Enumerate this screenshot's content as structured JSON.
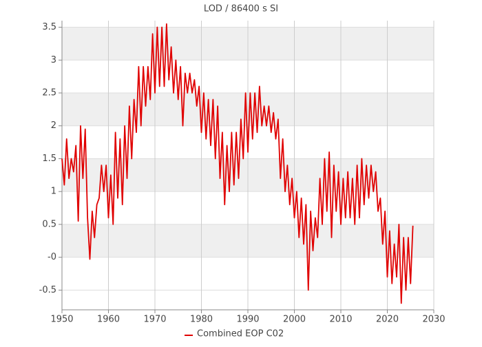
{
  "chart_data": {
    "type": "line",
    "title": "LOD / 86400 s SI",
    "x": [
      1950,
      1950.5,
      1951,
      1951.5,
      1952,
      1952.5,
      1953,
      1953.5,
      1954,
      1954.5,
      1955,
      1955.5,
      1956,
      1956.5,
      1957,
      1957.5,
      1958,
      1958.5,
      1959,
      1959.5,
      1960,
      1960.5,
      1961,
      1961.5,
      1962,
      1962.5,
      1963,
      1963.5,
      1964,
      1964.5,
      1965,
      1965.5,
      1966,
      1966.5,
      1967,
      1967.5,
      1968,
      1968.5,
      1969,
      1969.5,
      1970,
      1970.5,
      1971,
      1971.5,
      1972,
      1972.5,
      1973,
      1973.5,
      1974,
      1974.5,
      1975,
      1975.5,
      1976,
      1976.5,
      1977,
      1977.5,
      1978,
      1978.5,
      1979,
      1979.5,
      1980,
      1980.5,
      1981,
      1981.5,
      1982,
      1982.5,
      1983,
      1983.5,
      1984,
      1984.5,
      1985,
      1985.5,
      1986,
      1986.5,
      1987,
      1987.5,
      1988,
      1988.5,
      1989,
      1989.5,
      1990,
      1990.5,
      1991,
      1991.5,
      1992,
      1992.5,
      1993,
      1993.5,
      1994,
      1994.5,
      1995,
      1995.5,
      1996,
      1996.5,
      1997,
      1997.5,
      1998,
      1998.5,
      1999,
      1999.5,
      2000,
      2000.5,
      2001,
      2001.5,
      2002,
      2002.5,
      2003,
      2003.5,
      2004,
      2004.5,
      2005,
      2005.5,
      2006,
      2006.5,
      2007,
      2007.5,
      2008,
      2008.5,
      2009,
      2009.5,
      2010,
      2010.5,
      2011,
      2011.5,
      2012,
      2012.5,
      2013,
      2013.5,
      2014,
      2014.5,
      2015,
      2015.5,
      2016,
      2016.5,
      2017,
      2017.5,
      2018,
      2018.5,
      2019,
      2019.5,
      2020,
      2020.5,
      2021,
      2021.5,
      2022,
      2022.5,
      2023,
      2023.5,
      2024,
      2024.5,
      2025,
      2025.5
    ],
    "series": [
      {
        "name": "Combined EOP C02",
        "color": "#e00000",
        "values": [
          1.5,
          1.1,
          1.8,
          1.2,
          1.5,
          1.3,
          1.7,
          0.55,
          2.0,
          1.2,
          1.95,
          0.6,
          -0.03,
          0.7,
          0.3,
          0.8,
          0.9,
          1.4,
          1.0,
          1.4,
          0.6,
          1.25,
          0.5,
          1.9,
          0.9,
          1.8,
          0.8,
          2.0,
          1.2,
          2.3,
          1.5,
          2.4,
          1.9,
          2.9,
          2.0,
          2.9,
          2.3,
          2.9,
          2.4,
          3.4,
          2.5,
          3.5,
          2.6,
          3.5,
          2.6,
          3.55,
          2.7,
          3.2,
          2.5,
          3.0,
          2.4,
          2.9,
          2.0,
          2.8,
          2.5,
          2.8,
          2.5,
          2.7,
          2.3,
          2.6,
          1.9,
          2.5,
          1.8,
          2.4,
          1.7,
          2.4,
          1.5,
          2.3,
          1.2,
          1.9,
          0.8,
          1.7,
          1.0,
          1.9,
          1.1,
          1.9,
          1.2,
          2.1,
          1.5,
          2.5,
          1.6,
          2.5,
          1.8,
          2.5,
          1.9,
          2.6,
          2.0,
          2.3,
          2.0,
          2.3,
          1.9,
          2.2,
          1.8,
          2.1,
          1.2,
          1.8,
          1.0,
          1.4,
          0.8,
          1.2,
          0.6,
          1.0,
          0.3,
          0.9,
          0.2,
          0.8,
          -0.5,
          0.7,
          0.1,
          0.6,
          0.3,
          1.2,
          0.5,
          1.5,
          0.7,
          1.6,
          0.3,
          1.4,
          0.7,
          1.3,
          0.5,
          1.2,
          0.6,
          1.3,
          0.6,
          1.2,
          0.5,
          1.4,
          0.6,
          1.5,
          0.8,
          1.4,
          0.9,
          1.4,
          1.0,
          1.3,
          0.7,
          0.9,
          0.2,
          0.7,
          -0.3,
          0.4,
          -0.4,
          0.2,
          -0.3,
          0.5,
          -0.7,
          0.3,
          -0.5,
          0.3,
          -0.4,
          0.48
        ]
      }
    ],
    "xlim": [
      1950,
      2030
    ],
    "xticks": [
      1950,
      1960,
      1970,
      1980,
      1990,
      2000,
      2010,
      2020,
      2030
    ],
    "ylim": [
      -0.8,
      3.6
    ],
    "yticks": [
      -0.5,
      {
        "value": 0,
        "label": "-0"
      },
      0.5,
      1,
      1.5,
      2,
      2.5,
      3,
      3.5
    ],
    "grid": true,
    "legend": "bottom"
  }
}
